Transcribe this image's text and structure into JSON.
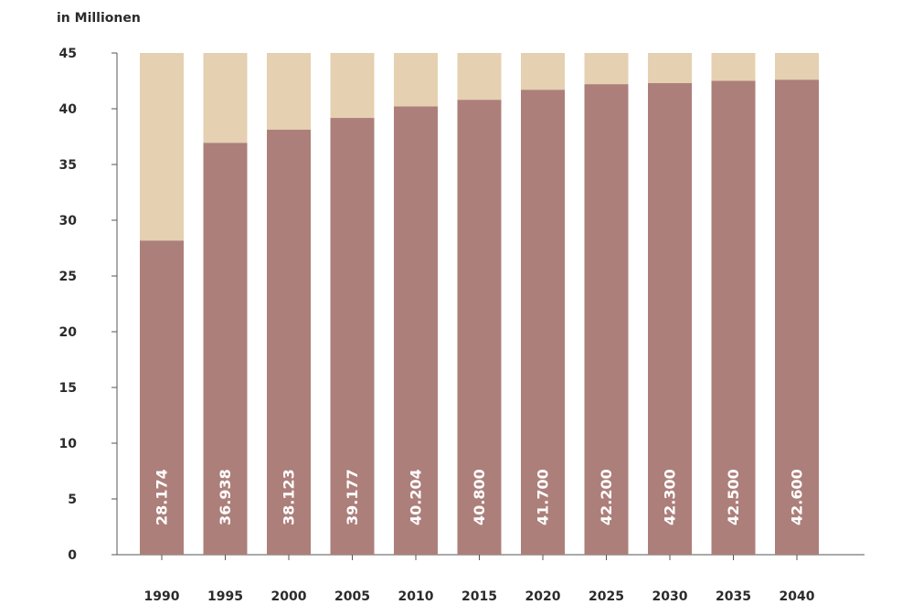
{
  "chart_data": {
    "type": "bar",
    "stacked": true,
    "unit_label": "in Millionen",
    "categories": [
      "1990",
      "1995",
      "2000",
      "2005",
      "2010",
      "2015",
      "2020",
      "2025",
      "2030",
      "2035",
      "2040"
    ],
    "values": [
      28.174,
      36.938,
      38.123,
      39.177,
      40.204,
      40.8,
      41.7,
      42.2,
      42.3,
      42.5,
      42.6
    ],
    "value_labels": [
      "28.174",
      "36.938",
      "38.123",
      "39.177",
      "40.204",
      "40.800",
      "41.700",
      "42.200",
      "42.300",
      "42.500",
      "42.600"
    ],
    "remainder_to": 45,
    "ylim": [
      0,
      45
    ],
    "yticks": [
      0,
      5,
      10,
      15,
      20,
      25,
      30,
      35,
      40,
      45
    ],
    "grid": false,
    "colors": {
      "value": "#ad7f7a",
      "remainder": "#e5d0b1",
      "axis": "#555555",
      "text": "#2b2b2b",
      "bar_label": "#ffffff"
    }
  }
}
